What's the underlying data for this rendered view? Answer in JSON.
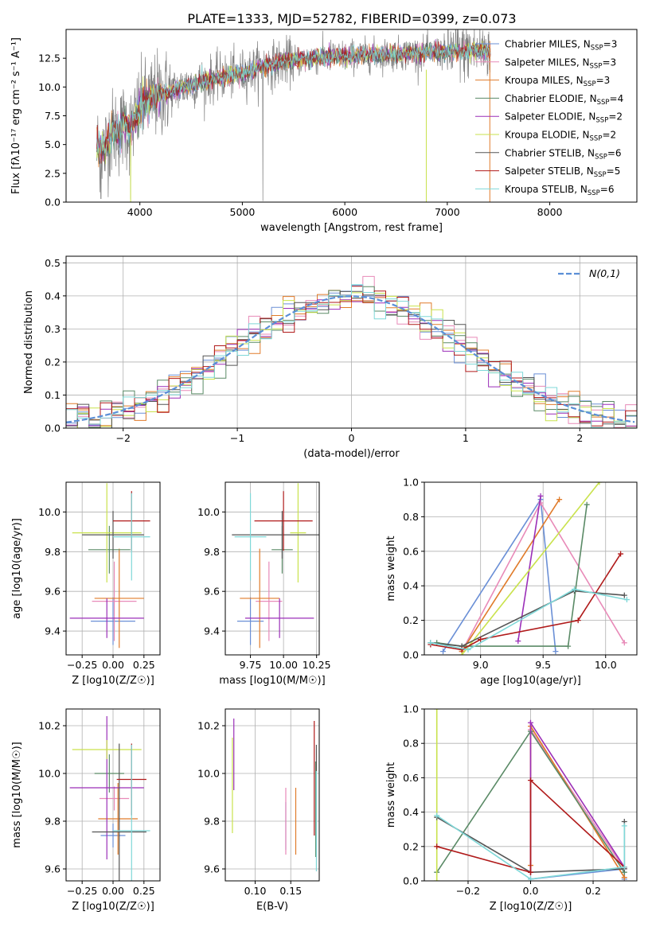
{
  "figure": {
    "title": "PLATE=1333, MJD=52782, FIBERID=0399, z=0.073"
  },
  "colors": {
    "chabrier_miles": "#6a8fd6",
    "salpeter_miles": "#e88ab8",
    "kroupa_miles": "#e07b2a",
    "chabrier_elodie": "#5a8a66",
    "salpeter_elodie": "#9b2fb8",
    "kroupa_elodie": "#c9e24c",
    "chabrier_stelib": "#555555",
    "salpeter_stelib": "#b01a1a",
    "kroupa_stelib": "#7fd8d8",
    "data": "#808080",
    "normal": "#5b8fd6"
  },
  "chart_data": [
    {
      "id": "spectrum",
      "type": "line",
      "xlabel": "wavelength [Angstrom, rest frame]",
      "ylabel": "Flux [fλ10⁻¹⁷ erg cm⁻² s⁻¹ A⁻¹]",
      "xlim": [
        3280,
        8850
      ],
      "ylim": [
        0,
        15
      ],
      "xticks": [
        4000,
        5000,
        6000,
        7000,
        8000
      ],
      "yticks": [
        0.0,
        2.5,
        5.0,
        7.5,
        10.0,
        12.5
      ],
      "legend_position": "right",
      "data_continuum": {
        "x": [
          3580,
          3650,
          3700,
          3750,
          3800,
          3850,
          3900,
          3950,
          4000,
          4100,
          4200,
          4300,
          4500,
          4800,
          5000,
          5200,
          5500,
          5800,
          6000,
          6300,
          6600,
          6900,
          7200,
          7420
        ],
        "y": [
          4.9,
          4.6,
          5.6,
          6.3,
          6.0,
          6.9,
          6.2,
          7.1,
          8.2,
          8.9,
          9.4,
          9.6,
          10.2,
          10.9,
          11.2,
          11.8,
          12.3,
          12.6,
          12.7,
          12.8,
          12.9,
          13.0,
          13.1,
          13.2
        ]
      },
      "series": [
        {
          "name": "Chabrier MILES, N_SSP=3",
          "label": "Chabrier MILES, N",
          "sub": "SSP",
          "suffix": "=3",
          "color_key": "chabrier_miles"
        },
        {
          "name": "Salpeter MILES, N_SSP=3",
          "label": "Salpeter MILES, N",
          "sub": "SSP",
          "suffix": "=3",
          "color_key": "salpeter_miles"
        },
        {
          "name": "Kroupa MILES, N_SSP=3",
          "label": "Kroupa MILES, N",
          "sub": "SSP",
          "suffix": "=3",
          "color_key": "kroupa_miles"
        },
        {
          "name": "Chabrier ELODIE, N_SSP=4",
          "label": "Chabrier ELODIE, N",
          "sub": "SSP",
          "suffix": "=4",
          "color_key": "chabrier_elodie"
        },
        {
          "name": "Salpeter ELODIE, N_SSP=2",
          "label": "Salpeter ELODIE, N",
          "sub": "SSP",
          "suffix": "=2",
          "color_key": "salpeter_elodie"
        },
        {
          "name": "Kroupa ELODIE, N_SSP=2",
          "label": "Kroupa ELODIE, N",
          "sub": "SSP",
          "suffix": "=2",
          "color_key": "kroupa_elodie"
        },
        {
          "name": "Chabrier STELIB, N_SSP=6",
          "label": "Chabrier STELIB, N",
          "sub": "SSP",
          "suffix": "=6",
          "color_key": "chabrier_stelib"
        },
        {
          "name": "Salpeter STELIB, N_SSP=5",
          "label": "Salpeter STELIB, N",
          "sub": "SSP",
          "suffix": "=5",
          "color_key": "salpeter_stelib"
        },
        {
          "name": "Kroupa STELIB, N_SSP=6",
          "label": "Kroupa STELIB, N",
          "sub": "SSP",
          "suffix": "=6",
          "color_key": "kroupa_stelib"
        }
      ]
    },
    {
      "id": "residuals",
      "type": "histogram",
      "xlabel": "(data-model)/error",
      "ylabel": "Normed distribution",
      "xlim": [
        -2.5,
        2.5
      ],
      "ylim": [
        0,
        0.52
      ],
      "xticks": [
        -2,
        -1,
        0,
        1,
        2
      ],
      "yticks": [
        0.0,
        0.1,
        0.2,
        0.3,
        0.4,
        0.5
      ],
      "grid": true,
      "legend_label": "N(0,1)",
      "legend_position": "top-right",
      "bin_width": 0.1
    },
    {
      "id": "age_vs_Z",
      "type": "errorbar",
      "xlabel": "Z [log10(Z/Z☉)]",
      "ylabel": "age [log10(age/yr)]",
      "xlim": [
        -0.38,
        0.38
      ],
      "ylim": [
        9.28,
        10.15
      ],
      "xticks": [
        -0.25,
        0.0,
        0.25
      ],
      "yticks": [
        9.4,
        9.6,
        9.8,
        10.0
      ],
      "points": [
        {
          "color_key": "chabrier_miles",
          "x": 0.0,
          "y": 9.45,
          "xerr": 0.18,
          "yerr": 0.12
        },
        {
          "color_key": "salpeter_miles",
          "x": 0.01,
          "y": 9.55,
          "xerr": 0.18,
          "yerr": 0.2
        },
        {
          "color_key": "kroupa_miles",
          "x": 0.05,
          "y": 9.565,
          "xerr": 0.2,
          "yerr": 0.25
        },
        {
          "color_key": "chabrier_elodie",
          "x": -0.03,
          "y": 9.81,
          "xerr": 0.17,
          "yerr": 0.12
        },
        {
          "color_key": "salpeter_elodie",
          "x": -0.05,
          "y": 9.465,
          "xerr": 0.3,
          "yerr": 0.1
        },
        {
          "color_key": "kroupa_elodie",
          "x": -0.05,
          "y": 9.895,
          "xerr": 0.28,
          "yerr": 0.25
        },
        {
          "color_key": "chabrier_stelib",
          "x": 0.0,
          "y": 9.885,
          "xerr": 0.25,
          "yerr": 0.12
        },
        {
          "color_key": "salpeter_stelib",
          "x": 0.15,
          "y": 9.955,
          "xerr": 0.15,
          "yerr": 0.15
        },
        {
          "color_key": "kroupa_stelib",
          "x": 0.15,
          "y": 9.875,
          "xerr": 0.15,
          "yerr": 0.22
        }
      ]
    },
    {
      "id": "age_vs_mass",
      "type": "errorbar",
      "xlabel": "mass [log10(M/M☉)]",
      "xlim": [
        9.56,
        10.27
      ],
      "ylim": [
        9.28,
        10.15
      ],
      "xticks": [
        9.75,
        10.0,
        10.25
      ],
      "yticks": [
        9.4,
        9.6,
        9.8,
        10.0
      ],
      "points": [
        {
          "color_key": "chabrier_miles",
          "x": 9.75,
          "y": 9.45,
          "xerr": 0.1,
          "yerr": 0.12
        },
        {
          "color_key": "salpeter_miles",
          "x": 9.89,
          "y": 9.55,
          "xerr": 0.1,
          "yerr": 0.2
        },
        {
          "color_key": "kroupa_miles",
          "x": 9.82,
          "y": 9.565,
          "xerr": 0.15,
          "yerr": 0.25
        },
        {
          "color_key": "chabrier_elodie",
          "x": 9.99,
          "y": 9.81,
          "xerr": 0.08,
          "yerr": 0.12
        },
        {
          "color_key": "salpeter_elodie",
          "x": 9.97,
          "y": 9.465,
          "xerr": 0.26,
          "yerr": 0.1
        },
        {
          "color_key": "kroupa_elodie",
          "x": 10.11,
          "y": 9.895,
          "xerr": 0.06,
          "yerr": 0.25
        },
        {
          "color_key": "chabrier_stelib",
          "x": 9.99,
          "y": 9.885,
          "xerr": 0.38,
          "yerr": 0.12
        },
        {
          "color_key": "salpeter_stelib",
          "x": 10.0,
          "y": 9.955,
          "xerr": 0.22,
          "yerr": 0.15
        },
        {
          "color_key": "kroupa_stelib",
          "x": 9.75,
          "y": 9.875,
          "xerr": 0.12,
          "yerr": 0.22
        }
      ]
    },
    {
      "id": "massweight_vs_age",
      "type": "line",
      "xlabel": "age [log10(age/yr)]",
      "ylabel": "mass weight",
      "xlim": [
        8.55,
        10.25
      ],
      "ylim": [
        0,
        1
      ],
      "xticks": [
        9.0,
        9.5,
        10.0
      ],
      "yticks": [
        0.0,
        0.2,
        0.4,
        0.6,
        0.8,
        1.0
      ],
      "grid": true,
      "series": [
        {
          "color_key": "chabrier_miles",
          "x": [
            8.7,
            9.48,
            9.6
          ],
          "y": [
            0.02,
            0.9,
            0.02
          ]
        },
        {
          "color_key": "salpeter_miles",
          "x": [
            8.85,
            9.48,
            10.15
          ],
          "y": [
            0.02,
            0.88,
            0.07
          ]
        },
        {
          "color_key": "kroupa_miles",
          "x": [
            8.85,
            9.63
          ],
          "y": [
            0.02,
            0.9
          ]
        },
        {
          "color_key": "chabrier_elodie",
          "x": [
            8.65,
            8.85,
            9.7,
            9.85
          ],
          "y": [
            0.07,
            0.05,
            0.05,
            0.87
          ]
        },
        {
          "color_key": "salpeter_elodie",
          "x": [
            9.3,
            9.48
          ],
          "y": [
            0.08,
            0.92
          ]
        },
        {
          "color_key": "kroupa_elodie",
          "x": [
            8.85,
            9.95
          ],
          "y": [
            0.0,
            1.0
          ]
        },
        {
          "color_key": "chabrier_stelib",
          "x": [
            8.6,
            8.85,
            9.75,
            10.15
          ],
          "y": [
            0.07,
            0.05,
            0.37,
            0.345
          ]
        },
        {
          "color_key": "salpeter_stelib",
          "x": [
            8.6,
            8.85,
            9.0,
            9.78,
            10.12
          ],
          "y": [
            0.06,
            0.03,
            0.09,
            0.2,
            0.585
          ]
        },
        {
          "color_key": "kroupa_stelib",
          "x": [
            8.6,
            8.9,
            9.75,
            10.17
          ],
          "y": [
            0.07,
            0.03,
            0.38,
            0.32
          ]
        }
      ]
    },
    {
      "id": "mass_vs_Z",
      "type": "errorbar",
      "xlabel": "Z [log10(Z/Z☉)]",
      "ylabel": "mass [log10(M/M☉)]",
      "xlim": [
        -0.38,
        0.38
      ],
      "ylim": [
        9.55,
        10.27
      ],
      "xticks": [
        -0.25,
        0.0,
        0.25
      ],
      "yticks": [
        9.6,
        9.8,
        10.0,
        10.2
      ],
      "points": [
        {
          "color_key": "chabrier_miles",
          "x": 0.0,
          "y": 9.74,
          "xerr": 0.1,
          "yerr": 0.05
        },
        {
          "color_key": "salpeter_miles",
          "x": 0.01,
          "y": 9.895,
          "xerr": 0.12,
          "yerr": 0.05
        },
        {
          "color_key": "kroupa_miles",
          "x": 0.04,
          "y": 9.81,
          "xerr": 0.16,
          "yerr": 0.15
        },
        {
          "color_key": "chabrier_elodie",
          "x": -0.03,
          "y": 10.0,
          "xerr": 0.12,
          "yerr": 0.08
        },
        {
          "color_key": "salpeter_elodie",
          "x": -0.05,
          "y": 9.94,
          "xerr": 0.3,
          "yerr": 0.3
        },
        {
          "color_key": "kroupa_elodie",
          "x": -0.05,
          "y": 10.1,
          "xerr": 0.28,
          "yerr": 0.04
        },
        {
          "color_key": "chabrier_stelib",
          "x": 0.05,
          "y": 9.755,
          "xerr": 0.22,
          "yerr": 0.37
        },
        {
          "color_key": "salpeter_stelib",
          "x": 0.15,
          "y": 9.975,
          "xerr": 0.12,
          "yerr": 0.15
        },
        {
          "color_key": "kroupa_stelib",
          "x": 0.15,
          "y": 9.76,
          "xerr": 0.15,
          "yerr": 0.36
        }
      ]
    },
    {
      "id": "mass_vs_ebv",
      "type": "errorbar",
      "xlabel": "E(B-V)",
      "xlim": [
        0.058,
        0.19
      ],
      "ylim": [
        9.55,
        10.27
      ],
      "xticks": [
        0.1,
        0.15
      ],
      "yticks": [
        9.6,
        9.8,
        10.0,
        10.2
      ],
      "points": [
        {
          "color_key": "chabrier_miles",
          "x": 0.143,
          "y": 9.78,
          "xerr": 0.0,
          "yerr": 0.1
        },
        {
          "color_key": "salpeter_miles",
          "x": 0.143,
          "y": 9.8,
          "xerr": 0.0,
          "yerr": 0.14
        },
        {
          "color_key": "kroupa_miles",
          "x": 0.157,
          "y": 9.8,
          "xerr": 0.0,
          "yerr": 0.14
        },
        {
          "color_key": "chabrier_elodie",
          "x": 0.185,
          "y": 9.85,
          "xerr": 0.0,
          "yerr": 0.2
        },
        {
          "color_key": "salpeter_elodie",
          "x": 0.07,
          "y": 10.08,
          "xerr": 0.0,
          "yerr": 0.15
        },
        {
          "color_key": "kroupa_elodie",
          "x": 0.068,
          "y": 9.95,
          "xerr": 0.0,
          "yerr": 0.2
        },
        {
          "color_key": "chabrier_stelib",
          "x": 0.186,
          "y": 9.93,
          "xerr": 0.0,
          "yerr": 0.19
        },
        {
          "color_key": "salpeter_stelib",
          "x": 0.183,
          "y": 9.98,
          "xerr": 0.0,
          "yerr": 0.24
        },
        {
          "color_key": "kroupa_stelib",
          "x": 0.186,
          "y": 9.8,
          "xerr": 0.0,
          "yerr": 0.21
        }
      ]
    },
    {
      "id": "massweight_vs_Z",
      "type": "line",
      "xlabel": "Z [log10(Z/Z☉)]",
      "ylabel": "mass weight",
      "xlim": [
        -0.34,
        0.34
      ],
      "ylim": [
        0,
        1
      ],
      "xticks": [
        -0.2,
        0.0,
        0.2
      ],
      "yticks": [
        0.0,
        0.2,
        0.4,
        0.6,
        0.8,
        1.0
      ],
      "grid": true,
      "series": [
        {
          "color_key": "chabrier_miles",
          "x": [
            0.0,
            0.3,
            0.3
          ],
          "y": [
            0.01,
            0.07,
            0.01
          ]
        },
        {
          "color_key": "salpeter_miles",
          "x": [
            0.0,
            0.0,
            0.3
          ],
          "y": [
            0.05,
            0.88,
            0.07
          ]
        },
        {
          "color_key": "kroupa_miles",
          "x": [
            0.0,
            0.0,
            0.3
          ],
          "y": [
            0.09,
            0.9,
            0.02
          ]
        },
        {
          "color_key": "chabrier_elodie",
          "x": [
            -0.3,
            0.0,
            0.3
          ],
          "y": [
            0.05,
            0.87,
            0.05
          ]
        },
        {
          "color_key": "salpeter_elodie",
          "x": [
            0.0,
            0.0,
            0.3
          ],
          "y": [
            0.05,
            0.92,
            0.08
          ]
        },
        {
          "color_key": "kroupa_elodie",
          "x": [
            -0.3,
            -0.3
          ],
          "y": [
            1.0,
            0.0
          ]
        },
        {
          "color_key": "chabrier_stelib",
          "x": [
            -0.3,
            0.0,
            0.3,
            0.3
          ],
          "y": [
            0.37,
            0.05,
            0.07,
            0.345
          ]
        },
        {
          "color_key": "salpeter_stelib",
          "x": [
            -0.3,
            0.0,
            0.0,
            0.3
          ],
          "y": [
            0.2,
            0.05,
            0.585,
            0.08
          ]
        },
        {
          "color_key": "kroupa_stelib",
          "x": [
            -0.3,
            0.0,
            0.3,
            0.3
          ],
          "y": [
            0.38,
            0.01,
            0.08,
            0.32
          ]
        }
      ]
    }
  ]
}
